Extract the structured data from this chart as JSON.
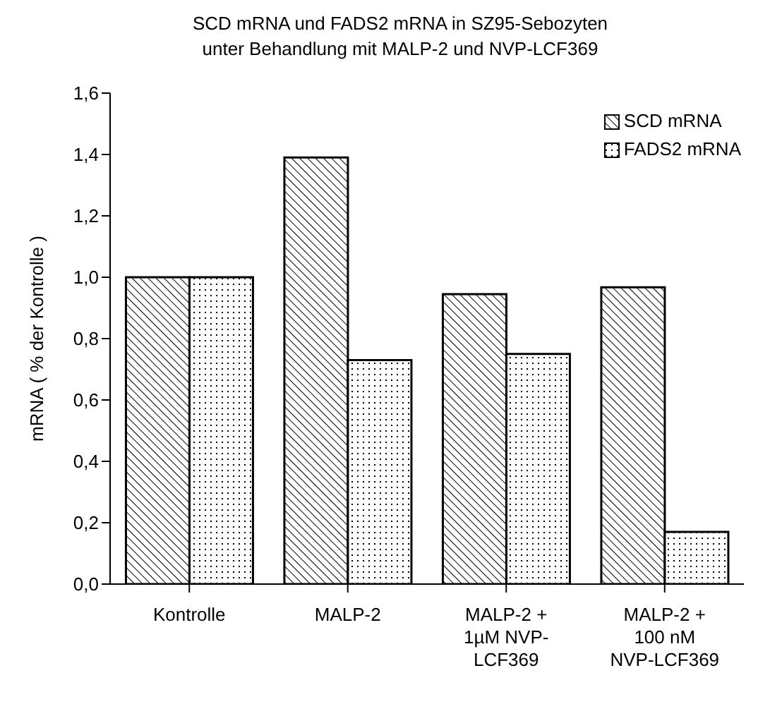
{
  "chart_data": {
    "type": "bar",
    "title": "SCD mRNA und FADS2 mRNA in SZ95-Sebozyten unter Behandlung mit MALP-2 und NVP-LCF369",
    "ylabel": "mRNA ( % der Kontrolle )",
    "categories": [
      "Kontrolle",
      "MALP-2",
      "MALP-2 + 1µM NVP-LCF369",
      "MALP-2 + 100 nM NVP-LCF369"
    ],
    "series": [
      {
        "name": "SCD mRNA",
        "color": "#000000",
        "values": [
          1.0,
          1.39,
          0.945,
          0.967
        ]
      },
      {
        "name": "FADS2 mRNA",
        "color": "#000000",
        "values": [
          1.0,
          0.73,
          0.75,
          0.17
        ]
      }
    ],
    "ylim": [
      0,
      1.6
    ],
    "yticks": [
      {
        "value": 0,
        "label": "0,0"
      },
      {
        "value": 0.2,
        "label": "0,2"
      },
      {
        "value": 0.4,
        "label": "0,4"
      },
      {
        "value": 0.6,
        "label": "0,6"
      },
      {
        "value": 0.8,
        "label": "0,8"
      },
      {
        "value": 1.0,
        "label": "1,0"
      },
      {
        "value": 1.2,
        "label": "1,2"
      },
      {
        "value": 1.4,
        "label": "1,4"
      },
      {
        "value": 1.6,
        "label": "1,6"
      }
    ],
    "legend": "top right"
  }
}
